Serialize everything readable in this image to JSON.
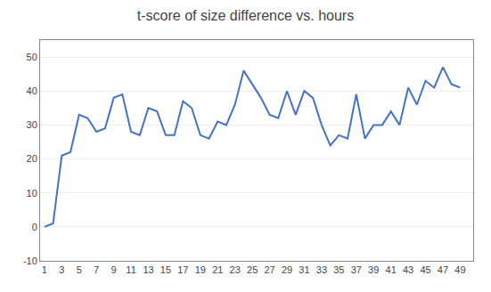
{
  "chart_data": {
    "type": "line",
    "title": "t-score of size difference vs. hours",
    "x": [
      1,
      2,
      3,
      4,
      5,
      6,
      7,
      8,
      9,
      10,
      11,
      12,
      13,
      14,
      15,
      16,
      17,
      18,
      19,
      20,
      21,
      22,
      23,
      24,
      25,
      26,
      27,
      28,
      29,
      30,
      31,
      32,
      33,
      34,
      35,
      36,
      37,
      38,
      39,
      40,
      41,
      42,
      43,
      44,
      45,
      46,
      47,
      48,
      49
    ],
    "values": [
      0,
      1,
      21,
      22,
      33,
      32,
      28,
      29,
      38,
      39,
      28,
      27,
      35,
      34,
      27,
      27,
      37,
      35,
      27,
      26,
      31,
      30,
      36,
      46,
      42,
      38,
      33,
      32,
      40,
      33,
      40,
      38,
      30,
      24,
      27,
      26,
      39,
      26,
      30,
      30,
      34,
      30,
      41,
      36,
      43,
      41,
      47,
      42,
      41
    ],
    "color": "#4472C4",
    "xlim": [
      0.5,
      50.5
    ],
    "xticks": [
      1,
      3,
      5,
      7,
      9,
      11,
      13,
      15,
      17,
      19,
      21,
      23,
      25,
      27,
      29,
      31,
      33,
      35,
      37,
      39,
      41,
      43,
      45,
      47,
      49
    ],
    "ylim": [
      -10,
      55
    ],
    "yticks": [
      -10,
      0,
      10,
      20,
      30,
      40,
      50
    ],
    "grid": "y"
  }
}
